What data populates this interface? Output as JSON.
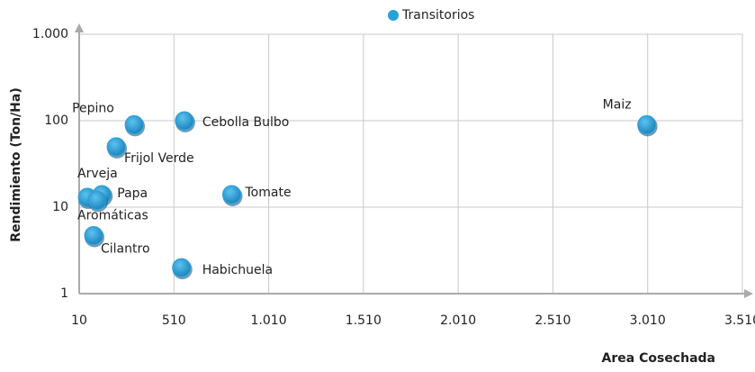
{
  "chart_data": {
    "type": "scatter",
    "y_label": "Rendimiento (Ton/Ha)",
    "x_label": "Area Cosechada",
    "legend": "top",
    "grid": true,
    "log_y": true,
    "xlim": [
      10,
      3510
    ],
    "ylim": [
      1,
      1000
    ],
    "xticks": [
      10,
      510,
      {
        "value": 1010,
        "label": "1.010"
      },
      {
        "value": 1510,
        "label": "1.510"
      },
      {
        "value": 2010,
        "label": "2.010"
      },
      {
        "value": 2510,
        "label": "2.510"
      },
      {
        "value": 3010,
        "label": "3.010"
      },
      {
        "value": 3510,
        "label": "3.510"
      }
    ],
    "yticks": [
      1,
      10,
      100,
      {
        "value": 1000,
        "label": "1.000"
      }
    ],
    "series": [
      {
        "name": "Transitorios",
        "color": "#2a9fd8",
        "point_labels": [
          "Pepino",
          "Cebolla Bulbo",
          "Frijol Verde",
          "Arveja",
          "Papa",
          "Aromáticas",
          "Cilantro",
          "Habichuela",
          "Tomate",
          "Maiz"
        ],
        "x": [
          300,
          565,
          205,
          53,
          130,
          105,
          86,
          550,
          815,
          3005
        ],
        "values": [
          90,
          100,
          50,
          13,
          14,
          12,
          4.7,
          2,
          14,
          90
        ]
      }
    ]
  }
}
